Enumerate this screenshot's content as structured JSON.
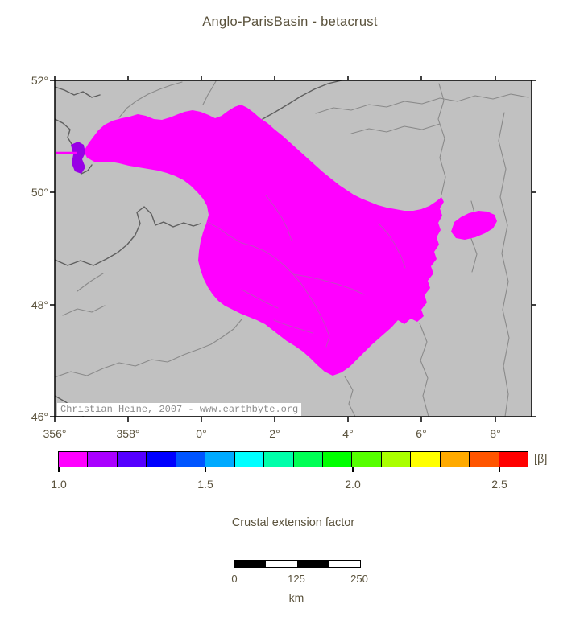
{
  "title": "Anglo-ParisBasin - betacrust",
  "map": {
    "watermark": "Christian Heine, 2007 - www.earthbyte.org",
    "x_tick_labels": [
      "356°",
      "358°",
      "0°",
      "2°",
      "4°",
      "6°",
      "8°"
    ],
    "y_tick_labels": [
      "52°",
      "50°",
      "48°",
      "46°"
    ],
    "colors": {
      "land": "#c1c1c1",
      "basin": "#ff00ff",
      "patch": "#9900e6",
      "coast": "#5f5f5f",
      "river": "#8a8a8a",
      "frame": "#000000",
      "text": "#5a523c"
    }
  },
  "colorbar": {
    "unit_label": "[β]",
    "tick_labels": [
      "1.0",
      "1.5",
      "2.0",
      "2.5"
    ],
    "range_min": 1.0,
    "range_max": 2.6,
    "colors": [
      "#ff00ff",
      "#aa00ff",
      "#5500ff",
      "#0000ff",
      "#0055ff",
      "#00aaff",
      "#00ffff",
      "#00ffaa",
      "#00ff55",
      "#00ff00",
      "#55ff00",
      "#aaff00",
      "#ffff00",
      "#ffaa00",
      "#ff5500",
      "#ff0000"
    ]
  },
  "caption": "Crustal extension factor",
  "scalebar": {
    "labels": [
      "0",
      "125",
      "250"
    ],
    "unit": "km",
    "segments": [
      "#000000",
      "#ffffff",
      "#000000",
      "#ffffff"
    ]
  }
}
